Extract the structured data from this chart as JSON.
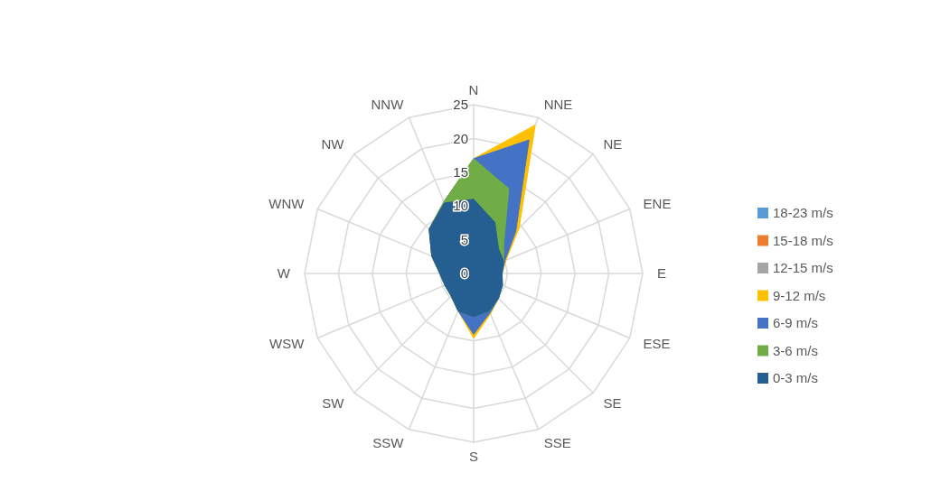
{
  "chart_data": {
    "type": "radar",
    "categories": [
      "N",
      "NNE",
      "NE",
      "ENE",
      "E",
      "ESE",
      "SE",
      "SSE",
      "S",
      "SSW",
      "SW",
      "WSW",
      "W",
      "WNW",
      "NW",
      "NNW"
    ],
    "ylim": [
      0,
      25
    ],
    "yticks": [
      0,
      5,
      10,
      15,
      20,
      25
    ],
    "grid": true,
    "legend": "right",
    "series": [
      {
        "name": "0-3 m/s",
        "color": "#255e91",
        "values": [
          11,
          8.2,
          5.2,
          4.8,
          4.2,
          4.6,
          5.2,
          6,
          6.4,
          6,
          4.7,
          4.6,
          5,
          6.7,
          9.3,
          11.3
        ]
      },
      {
        "name": "3-6 m/s",
        "color": "#70ad47",
        "values": [
          17,
          13.6,
          6.3,
          4.8,
          4.2,
          4.6,
          5.2,
          6,
          6.4,
          6,
          4.7,
          4.6,
          5,
          6.7,
          9.3,
          11.5
        ]
      },
      {
        "name": "6-9 m/s",
        "color": "#4472c4",
        "values": [
          17,
          21.4,
          8.8,
          5,
          4.2,
          4.6,
          5.2,
          6.3,
          9,
          6,
          4.7,
          4.6,
          5,
          6.7,
          9.3,
          11.5
        ]
      },
      {
        "name": "9-12 m/s",
        "color": "#ffc000",
        "values": [
          17,
          23.8,
          9.5,
          5.2,
          4.2,
          4.6,
          5.2,
          6.5,
          9.6,
          6,
          4.7,
          4.6,
          5,
          6.7,
          9.3,
          11.5
        ]
      },
      {
        "name": "12-15 m/s",
        "color": "#a5a5a5",
        "values": [
          null,
          null,
          null,
          null,
          null,
          null,
          null,
          null,
          null,
          null,
          null,
          null,
          null,
          null,
          null,
          null
        ]
      },
      {
        "name": "15-18 m/s",
        "color": "#ed7d31",
        "values": [
          null,
          null,
          null,
          null,
          null,
          null,
          null,
          null,
          null,
          null,
          null,
          null,
          null,
          null,
          null,
          null
        ]
      },
      {
        "name": "18-23 m/s",
        "color": "#5b9bd5",
        "values": [
          null,
          null,
          null,
          null,
          null,
          null,
          null,
          null,
          null,
          null,
          null,
          null,
          null,
          null,
          null,
          null
        ]
      }
    ]
  }
}
